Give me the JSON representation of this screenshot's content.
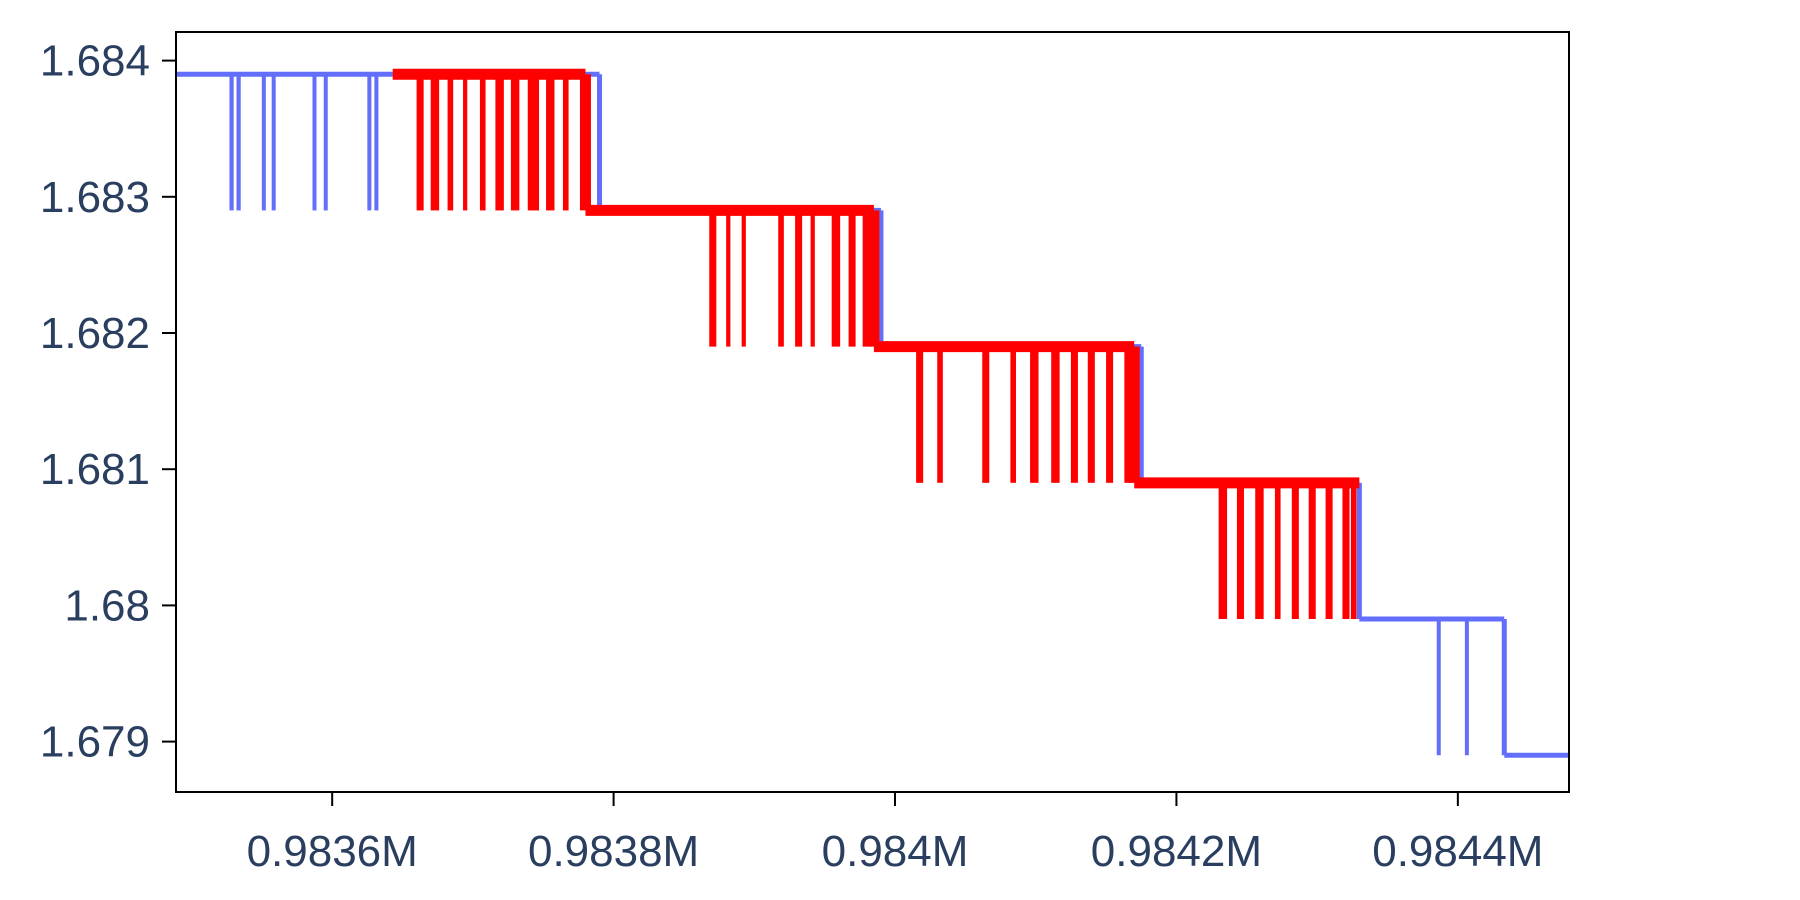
{
  "chart_data": {
    "type": "line",
    "title": "",
    "xlabel": "",
    "ylabel": "",
    "x_range": [
      983489,
      983484.8
    ],
    "xlim": [
      983489,
      984479
    ],
    "ylim": [
      1.67863,
      1.68421
    ],
    "x_ticks": [
      {
        "value": 983600,
        "label": "0.9836M"
      },
      {
        "value": 983800,
        "label": "0.9838M"
      },
      {
        "value": 984000,
        "label": "0.984M"
      },
      {
        "value": 984200,
        "label": "0.9842M"
      },
      {
        "value": 984400,
        "label": "0.9844M"
      }
    ],
    "y_ticks": [
      {
        "value": 1.684,
        "label": "1.684"
      },
      {
        "value": 1.683,
        "label": "1.683"
      },
      {
        "value": 1.682,
        "label": "1.682"
      },
      {
        "value": 1.681,
        "label": "1.681"
      },
      {
        "value": 1.68,
        "label": "1.68"
      },
      {
        "value": 1.679,
        "label": "1.679"
      }
    ],
    "grid": false,
    "legend": "none",
    "series": [
      {
        "color": "#636efa",
        "steps": [
          {
            "x_start": 983489,
            "x_end": 983643,
            "y": 1.6839
          },
          {
            "x_start": 983643,
            "x_end": 983790,
            "y": 1.6839
          },
          {
            "x_start": 983790,
            "x_end": 983990,
            "y": 1.6829
          },
          {
            "x_start": 983990,
            "x_end": 984175,
            "y": 1.6819
          },
          {
            "x_start": 984175,
            "x_end": 984330,
            "y": 1.6809
          },
          {
            "x_start": 984330,
            "x_end": 984433,
            "y": 1.6799
          },
          {
            "x_start": 984433,
            "x_end": 984479,
            "y": 1.6789
          }
        ],
        "dips": [
          {
            "x": 983527,
            "width": 3,
            "to": 1.6829
          },
          {
            "x": 983532,
            "width": 3,
            "to": 1.6829
          },
          {
            "x": 983550,
            "width": 2,
            "to": 1.6829
          },
          {
            "x": 983557,
            "width": 2,
            "to": 1.6829
          },
          {
            "x": 983586,
            "width": 2,
            "to": 1.6829
          },
          {
            "x": 983594,
            "width": 2,
            "to": 1.6829
          },
          {
            "x": 983625,
            "width": 2,
            "to": 1.6829
          },
          {
            "x": 983630,
            "width": 2,
            "to": 1.6829
          },
          {
            "x": 984335,
            "width": 2,
            "to": 1.6799
          },
          {
            "x": 984347,
            "width": 2,
            "to": 1.6799
          },
          {
            "x": 984352,
            "width": 2,
            "to": 1.6799
          },
          {
            "x": 984366,
            "width": 2,
            "to": 1.6799
          },
          {
            "x": 984385,
            "width": 2,
            "to": 1.6789
          },
          {
            "x": 984405,
            "width": 2,
            "to": 1.6789
          }
        ]
      },
      {
        "color": "#ff0000",
        "x_range": [
          983643,
          984330
        ],
        "steps": [
          {
            "x_start": 983643,
            "x_end": 983780,
            "y": 1.6839
          },
          {
            "x_start": 983780,
            "x_end": 983985,
            "y": 1.6829
          },
          {
            "x_start": 983985,
            "x_end": 984170,
            "y": 1.6819
          },
          {
            "x_start": 984170,
            "x_end": 984330,
            "y": 1.6809
          }
        ],
        "dips": [
          {
            "x": 983660,
            "width": 5,
            "to": 1.6829
          },
          {
            "x": 983670,
            "width": 6,
            "to": 1.6829
          },
          {
            "x": 983682,
            "width": 4,
            "to": 1.6829
          },
          {
            "x": 983693,
            "width": 3,
            "to": 1.6829
          },
          {
            "x": 983705,
            "width": 4,
            "to": 1.6829
          },
          {
            "x": 983716,
            "width": 6,
            "to": 1.6829
          },
          {
            "x": 983727,
            "width": 6,
            "to": 1.6829
          },
          {
            "x": 983739,
            "width": 8,
            "to": 1.6829
          },
          {
            "x": 983752,
            "width": 6,
            "to": 1.6829
          },
          {
            "x": 983764,
            "width": 4,
            "to": 1.6829
          },
          {
            "x": 983868,
            "width": 5,
            "to": 1.6819
          },
          {
            "x": 983880,
            "width": 3,
            "to": 1.6819
          },
          {
            "x": 983891,
            "width": 3,
            "to": 1.6819
          },
          {
            "x": 983917,
            "width": 4,
            "to": 1.6819
          },
          {
            "x": 983929,
            "width": 5,
            "to": 1.6819
          },
          {
            "x": 983940,
            "width": 3,
            "to": 1.6819
          },
          {
            "x": 983955,
            "width": 6,
            "to": 1.6819
          },
          {
            "x": 983967,
            "width": 5,
            "to": 1.6819
          },
          {
            "x": 983977,
            "width": 6,
            "to": 1.6819
          },
          {
            "x": 984015,
            "width": 5,
            "to": 1.6809
          },
          {
            "x": 984030,
            "width": 4,
            "to": 1.6809
          },
          {
            "x": 984062,
            "width": 5,
            "to": 1.6809
          },
          {
            "x": 984082,
            "width": 4,
            "to": 1.6809
          },
          {
            "x": 984096,
            "width": 6,
            "to": 1.6809
          },
          {
            "x": 984111,
            "width": 6,
            "to": 1.6809
          },
          {
            "x": 984125,
            "width": 5,
            "to": 1.6809
          },
          {
            "x": 984137,
            "width": 5,
            "to": 1.6809
          },
          {
            "x": 984150,
            "width": 5,
            "to": 1.6809
          },
          {
            "x": 984163,
            "width": 5,
            "to": 1.6809
          },
          {
            "x": 984230,
            "width": 6,
            "to": 1.6799
          },
          {
            "x": 984243,
            "width": 5,
            "to": 1.6799
          },
          {
            "x": 984256,
            "width": 6,
            "to": 1.6799
          },
          {
            "x": 984270,
            "width": 4,
            "to": 1.6799
          },
          {
            "x": 984282,
            "width": 5,
            "to": 1.6799
          },
          {
            "x": 984294,
            "width": 5,
            "to": 1.6799
          },
          {
            "x": 984306,
            "width": 5,
            "to": 1.6799
          },
          {
            "x": 984318,
            "width": 5,
            "to": 1.6799
          },
          {
            "x": 984324,
            "width": 4,
            "to": 1.6799
          }
        ]
      }
    ]
  }
}
